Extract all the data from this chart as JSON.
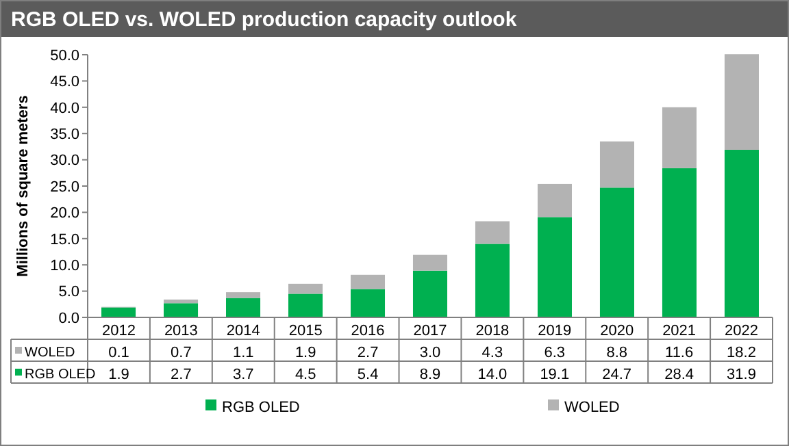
{
  "chart_data": {
    "type": "bar",
    "title": "RGB OLED vs. WOLED production capacity outlook",
    "ylabel": "Millions of square meters",
    "categories": [
      "2012",
      "2013",
      "2014",
      "2015",
      "2016",
      "2017",
      "2018",
      "2019",
      "2020",
      "2021",
      "2022"
    ],
    "series": [
      {
        "name": "RGB OLED",
        "color": "#00b050",
        "values": [
          1.9,
          2.7,
          3.7,
          4.5,
          5.4,
          8.9,
          14.0,
          19.1,
          24.7,
          28.4,
          31.9
        ],
        "value_labels": [
          "1.9",
          "2.7",
          "3.7",
          "4.5",
          "5.4",
          "8.9",
          "14.0",
          "19.1",
          "24.7",
          "28.4",
          "31.9"
        ]
      },
      {
        "name": "WOLED",
        "color": "#b3b3b3",
        "values": [
          0.1,
          0.7,
          1.1,
          1.9,
          2.7,
          3.0,
          4.3,
          6.3,
          8.8,
          11.6,
          18.2
        ],
        "value_labels": [
          "0.1",
          "0.7",
          "1.1",
          "1.9",
          "2.7",
          "3.0",
          "4.3",
          "6.3",
          "8.8",
          "11.6",
          "18.2"
        ]
      }
    ],
    "stacked": true,
    "legend": "bottom",
    "grid": false,
    "ylim": [
      0,
      50
    ],
    "yticks": [
      {
        "value": 0,
        "label": "0.0"
      },
      {
        "value": 5,
        "label": "5.0"
      },
      {
        "value": 10,
        "label": "10.0"
      },
      {
        "value": 15,
        "label": "15.0"
      },
      {
        "value": 20,
        "label": "20.0"
      },
      {
        "value": 25,
        "label": "25.0"
      },
      {
        "value": 30,
        "label": "30.0"
      },
      {
        "value": 35,
        "label": "35.0"
      },
      {
        "value": 40,
        "label": "40.0"
      },
      {
        "value": 45,
        "label": "45.0"
      },
      {
        "value": 50,
        "label": "50.0"
      }
    ]
  }
}
